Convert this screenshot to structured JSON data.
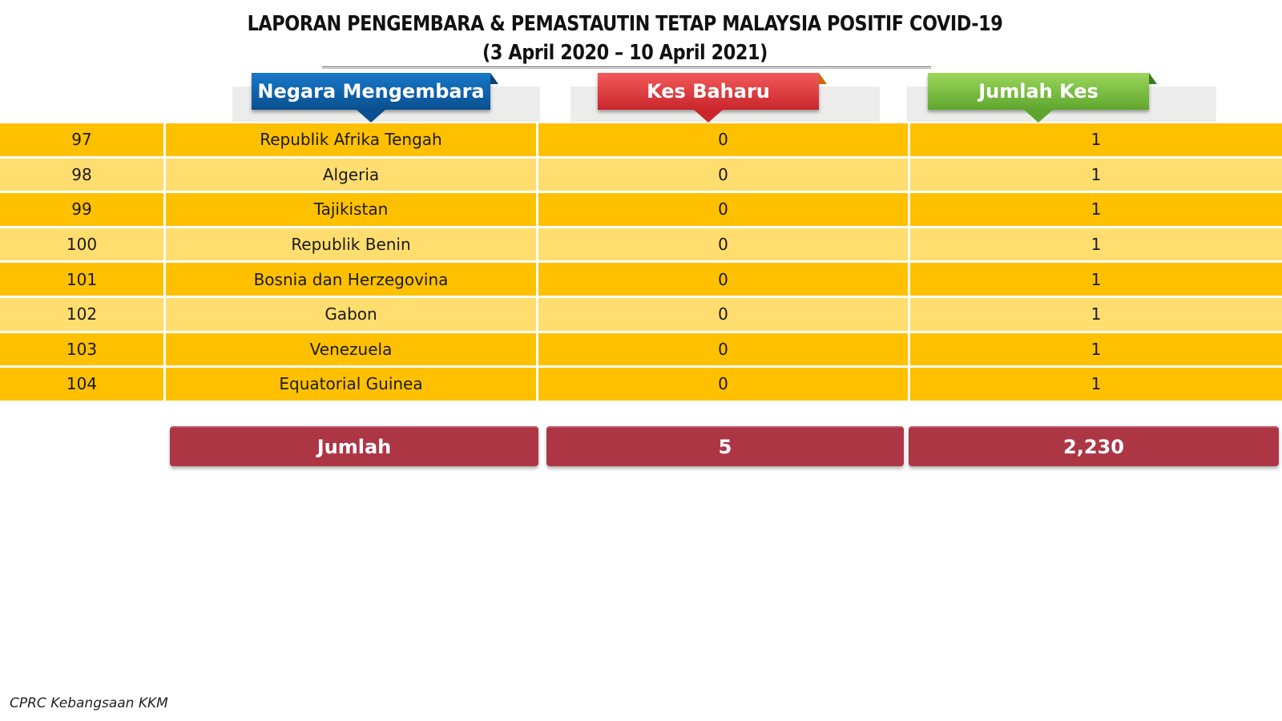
{
  "report": {
    "title_line1": "LAPORAN PENGEMBARA & PEMASTAUTIN TETAP MALAYSIA POSITIF COVID-19",
    "title_line2": "(3 April 2020 – 10 April  2021)"
  },
  "headers": {
    "country": "Negara Mengembara",
    "new_cases": "Kes Baharu",
    "total_cases": "Jumlah Kes"
  },
  "colors": {
    "row_dark": "#ffc000",
    "row_light": "#ffdd6e",
    "header_blue": "#0a4f8f",
    "header_red": "#c9262b",
    "header_green": "#5fa62e",
    "totals_bg": "#ad3645"
  },
  "rows": [
    {
      "no": "97",
      "country": "Republik Afrika Tengah",
      "new": "0",
      "total": "1"
    },
    {
      "no": "98",
      "country": "Algeria",
      "new": "0",
      "total": "1"
    },
    {
      "no": "99",
      "country": "Tajikistan",
      "new": "0",
      "total": "1"
    },
    {
      "no": "100",
      "country": "Republik Benin",
      "new": "0",
      "total": "1"
    },
    {
      "no": "101",
      "country": "Bosnia dan Herzegovina",
      "new": "0",
      "total": "1"
    },
    {
      "no": "102",
      "country": "Gabon",
      "new": "0",
      "total": "1"
    },
    {
      "no": "103",
      "country": "Venezuela",
      "new": "0",
      "total": "1"
    },
    {
      "no": "104",
      "country": "Equatorial Guinea",
      "new": "0",
      "total": "1"
    }
  ],
  "totals": {
    "label": "Jumlah",
    "new_cases": "5",
    "total_cases": "2,230"
  },
  "footer": "CPRC Kebangsaan KKM"
}
